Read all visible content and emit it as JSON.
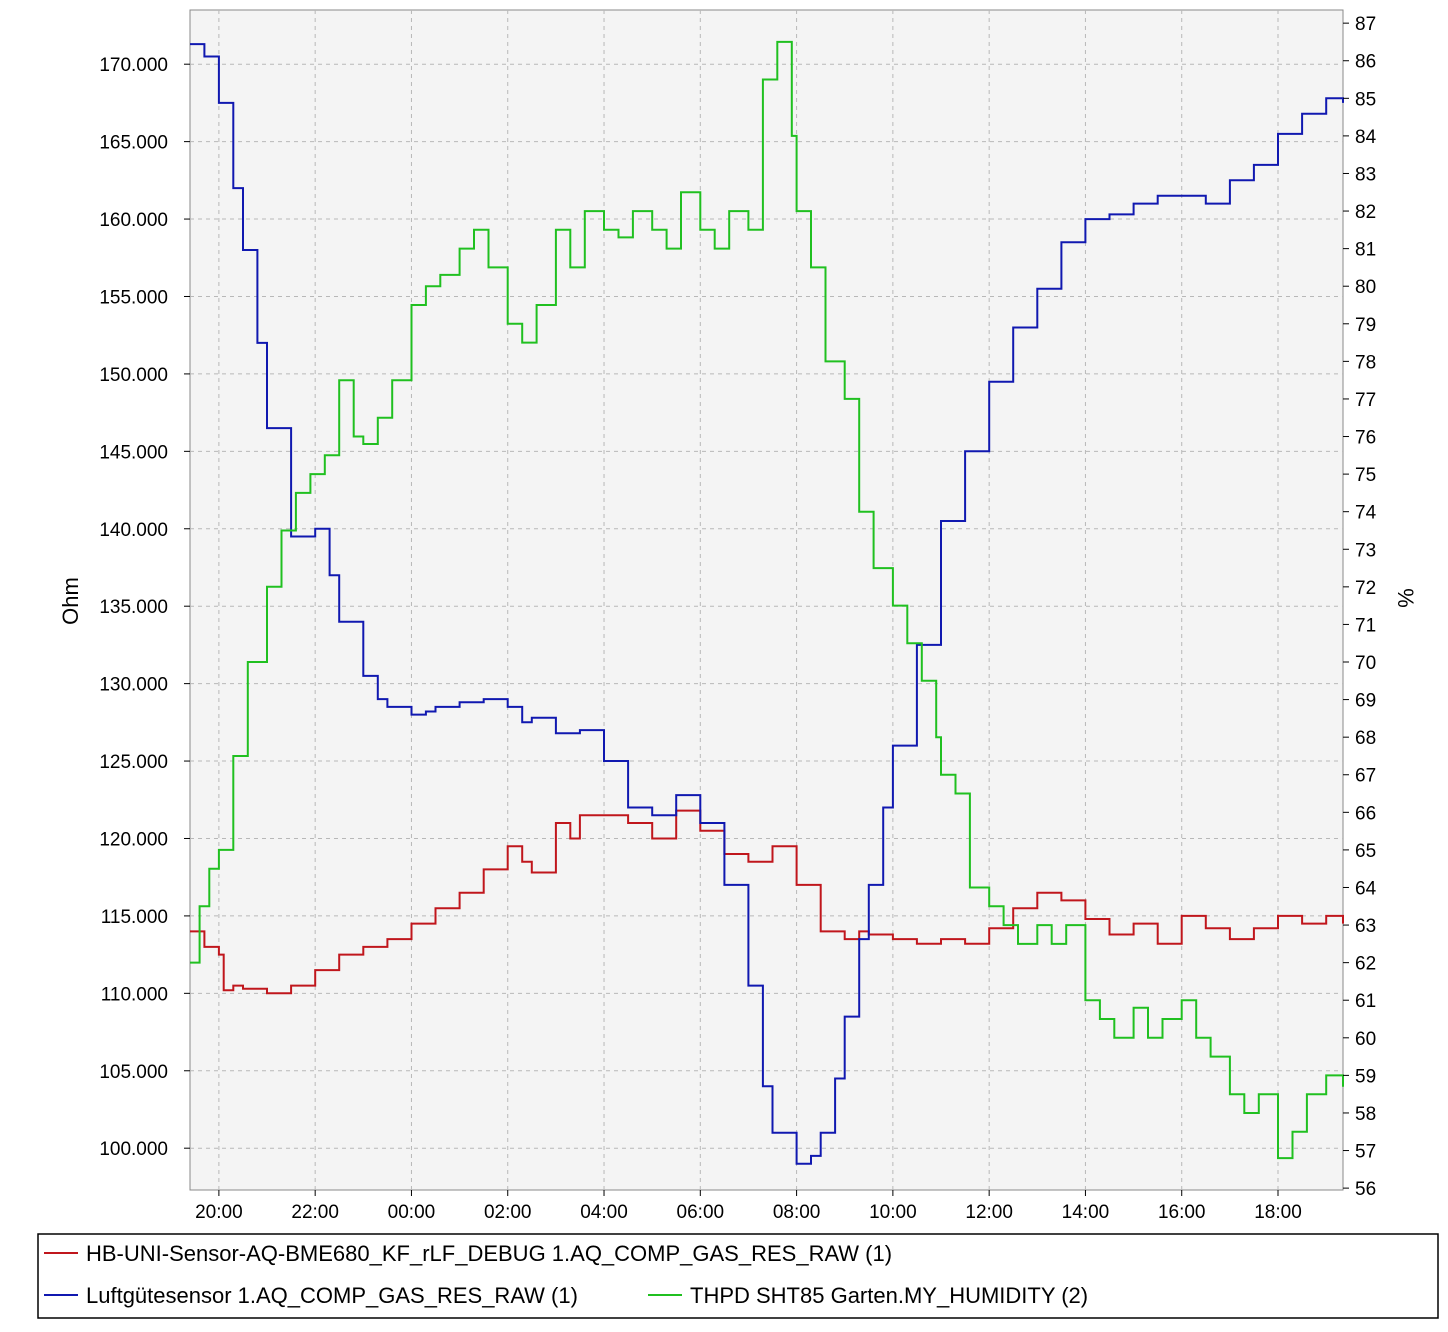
{
  "chart_data": {
    "type": "line",
    "step": true,
    "colors": {
      "red": "#c0161c",
      "blue": "#1018b0",
      "green": "#20c020",
      "plot_bg": "#f4f4f4",
      "grid": "#b8b8b8"
    },
    "x_ticks": [
      "20:00",
      "22:00",
      "00:00",
      "02:00",
      "04:00",
      "06:00",
      "08:00",
      "10:00",
      "12:00",
      "14:00",
      "16:00",
      "18:00"
    ],
    "xlim_hours": [
      19.4,
      43.35
    ],
    "left_axis": {
      "label": "Ohm",
      "ylim": [
        97300,
        173500
      ],
      "ticks": [
        "100.000",
        "105.000",
        "110.000",
        "115.000",
        "120.000",
        "125.000",
        "130.000",
        "135.000",
        "140.000",
        "145.000",
        "150.000",
        "155.000",
        "160.000",
        "165.000",
        "170.000"
      ]
    },
    "right_axis": {
      "label": "%",
      "ylim": [
        55.95,
        87.35
      ],
      "ticks": [
        "56",
        "57",
        "58",
        "59",
        "60",
        "61",
        "62",
        "63",
        "64",
        "65",
        "66",
        "67",
        "68",
        "69",
        "70",
        "71",
        "72",
        "73",
        "74",
        "75",
        "76",
        "77",
        "78",
        "79",
        "80",
        "81",
        "82",
        "83",
        "84",
        "85",
        "86",
        "87"
      ]
    },
    "legend": {
      "position": "bottom",
      "entries": [
        "HB-UNI-Sensor-AQ-BME680_KF_rLF_DEBUG 1.AQ_COMP_GAS_RES_RAW (1)",
        "Luftgütesensor 1.AQ_COMP_GAS_RES_RAW (1)",
        "THPD SHT85 Garten.MY_HUMIDITY (2)"
      ]
    },
    "series": [
      {
        "name": "HB-UNI-Sensor-AQ-BME680_KF_rLF_DEBUG 1.AQ_COMP_GAS_RES_RAW (1)",
        "color": "red",
        "axis": "left",
        "x": [
          19.4,
          19.7,
          20.0,
          20.1,
          20.3,
          20.5,
          21.0,
          21.5,
          22.0,
          22.5,
          23.0,
          23.5,
          24.0,
          24.5,
          25.0,
          25.5,
          26.0,
          26.3,
          26.5,
          27.0,
          27.3,
          27.5,
          28.0,
          28.5,
          29.0,
          29.5,
          30.0,
          30.5,
          31.0,
          31.5,
          32.0,
          32.5,
          33.0,
          33.3,
          33.5,
          34.0,
          34.5,
          35.0,
          35.5,
          36.0,
          36.5,
          37.0,
          37.5,
          38.0,
          38.5,
          39.0,
          39.5,
          40.0,
          40.5,
          41.0,
          41.5,
          42.0,
          42.5,
          43.0,
          43.35
        ],
        "y": [
          114000,
          113000,
          112500,
          110200,
          110500,
          110300,
          110000,
          110500,
          111500,
          112500,
          113000,
          113500,
          114500,
          115500,
          116500,
          118000,
          119500,
          118500,
          117800,
          121000,
          120000,
          121500,
          121500,
          121000,
          120000,
          121800,
          120500,
          119000,
          118500,
          119500,
          117000,
          114000,
          113500,
          114000,
          113800,
          113500,
          113200,
          113500,
          113200,
          114200,
          115500,
          116500,
          116000,
          114800,
          113800,
          114500,
          113200,
          115000,
          114200,
          113500,
          114200,
          115000,
          114500,
          115000,
          114500
        ]
      },
      {
        "name": "Luftgütesensor 1.AQ_COMP_GAS_RES_RAW (1)",
        "color": "blue",
        "axis": "left",
        "x": [
          19.4,
          19.7,
          20.0,
          20.3,
          20.5,
          20.8,
          21.0,
          21.5,
          22.0,
          22.3,
          22.5,
          23.0,
          23.3,
          23.5,
          24.0,
          24.3,
          24.5,
          25.0,
          25.5,
          26.0,
          26.3,
          26.5,
          27.0,
          27.5,
          28.0,
          28.5,
          29.0,
          29.5,
          30.0,
          30.5,
          31.0,
          31.3,
          31.5,
          32.0,
          32.3,
          32.5,
          32.8,
          33.0,
          33.3,
          33.5,
          33.8,
          34.0,
          34.5,
          35.0,
          35.5,
          36.0,
          36.5,
          37.0,
          37.5,
          38.0,
          38.5,
          39.0,
          39.5,
          40.0,
          40.5,
          41.0,
          41.5,
          42.0,
          42.5,
          43.0,
          43.35
        ],
        "y": [
          171300,
          170500,
          167500,
          162000,
          158000,
          152000,
          146500,
          139500,
          140000,
          137000,
          134000,
          130500,
          129000,
          128500,
          128000,
          128200,
          128500,
          128800,
          129000,
          128500,
          127500,
          127800,
          126800,
          127000,
          125000,
          122000,
          121500,
          122800,
          121000,
          117000,
          110500,
          104000,
          101000,
          99000,
          99500,
          101000,
          104500,
          108500,
          113500,
          117000,
          122000,
          126000,
          132500,
          140500,
          145000,
          149500,
          153000,
          155500,
          158500,
          160000,
          160300,
          161000,
          161500,
          161500,
          161000,
          162500,
          163500,
          165500,
          166800,
          167800,
          167500
        ]
      },
      {
        "name": "THPD SHT85 Garten.MY_HUMIDITY (2)",
        "color": "green",
        "axis": "right",
        "x": [
          19.4,
          19.6,
          19.8,
          20.0,
          20.3,
          20.6,
          21.0,
          21.3,
          21.6,
          21.9,
          22.2,
          22.5,
          22.8,
          23.0,
          23.3,
          23.6,
          24.0,
          24.3,
          24.6,
          25.0,
          25.3,
          25.6,
          26.0,
          26.3,
          26.6,
          27.0,
          27.3,
          27.6,
          28.0,
          28.3,
          28.6,
          29.0,
          29.3,
          29.6,
          30.0,
          30.3,
          30.6,
          31.0,
          31.3,
          31.6,
          31.9,
          32.0,
          32.3,
          32.6,
          33.0,
          33.3,
          33.6,
          34.0,
          34.3,
          34.6,
          34.9,
          35.0,
          35.3,
          35.6,
          36.0,
          36.3,
          36.6,
          37.0,
          37.3,
          37.6,
          38.0,
          38.3,
          38.6,
          39.0,
          39.3,
          39.6,
          40.0,
          40.3,
          40.6,
          41.0,
          41.3,
          41.6,
          42.0,
          42.3,
          42.6,
          43.0,
          43.35
        ],
        "y": [
          62.0,
          63.5,
          64.5,
          65.0,
          67.5,
          70.0,
          72.0,
          73.5,
          74.5,
          75.0,
          75.5,
          77.5,
          76.0,
          75.8,
          76.5,
          77.5,
          79.5,
          80.0,
          80.3,
          81.0,
          81.5,
          80.5,
          79.0,
          78.5,
          79.5,
          81.5,
          80.5,
          82.0,
          81.5,
          81.3,
          82.0,
          81.5,
          81.0,
          82.5,
          81.5,
          81.0,
          82.0,
          81.5,
          85.5,
          86.5,
          84.0,
          82.0,
          80.5,
          78.0,
          77.0,
          74.0,
          72.5,
          71.5,
          70.5,
          69.5,
          68.0,
          67.0,
          66.5,
          64.0,
          63.5,
          63.0,
          62.5,
          63.0,
          62.5,
          63.0,
          61.0,
          60.5,
          60.0,
          60.8,
          60.0,
          60.5,
          61.0,
          60.0,
          59.5,
          58.5,
          58.0,
          58.5,
          56.8,
          57.5,
          58.5,
          59.0,
          58.7
        ]
      }
    ]
  }
}
